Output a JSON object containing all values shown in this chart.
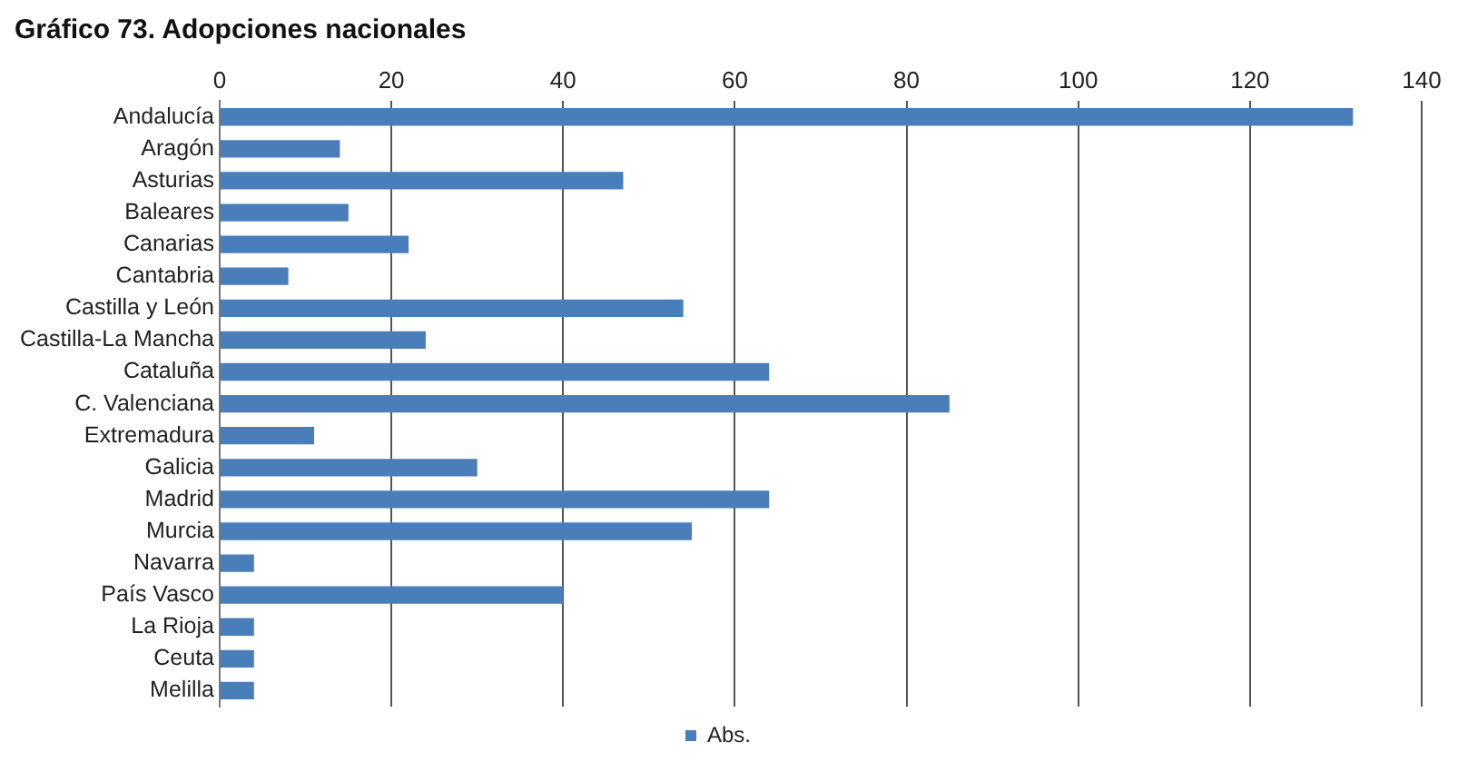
{
  "chart_data": {
    "type": "bar",
    "orientation": "horizontal",
    "title": "Gráfico 73. Adopciones nacionales",
    "categories": [
      "Andalucía",
      "Aragón",
      "Asturias",
      "Baleares",
      "Canarias",
      "Cantabria",
      "Castilla y León",
      "Castilla-La Mancha",
      "Cataluña",
      "C. Valenciana",
      "Extremadura",
      "Galicia",
      "Madrid",
      "Murcia",
      "Navarra",
      "País Vasco",
      "La Rioja",
      "Ceuta",
      "Melilla"
    ],
    "series": [
      {
        "name": "Abs.",
        "color": "#4a7ebb",
        "values": [
          132,
          14,
          47,
          15,
          22,
          8,
          54,
          24,
          64,
          85,
          11,
          30,
          64,
          55,
          4,
          40,
          4,
          4,
          4
        ]
      }
    ],
    "xlim": [
      0,
      140
    ],
    "xticks": [
      0,
      20,
      40,
      60,
      80,
      100,
      120,
      140
    ],
    "grid": "x",
    "legend": "bottom"
  }
}
